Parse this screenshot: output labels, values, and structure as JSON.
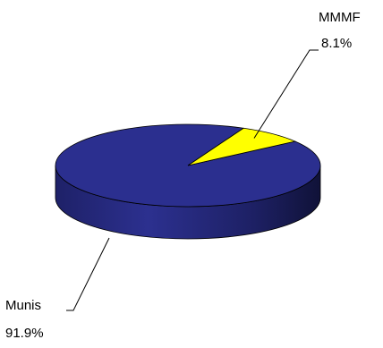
{
  "chart_data": {
    "type": "pie",
    "title": "",
    "slices": [
      {
        "label": "Munis",
        "value": 91.9,
        "value_label": "91.9%",
        "color": "#2b2f8f"
      },
      {
        "label": "MMMF",
        "value": 8.1,
        "value_label": "8.1%",
        "color": "#ffff00"
      }
    ],
    "style": "3d",
    "legend": "none"
  }
}
